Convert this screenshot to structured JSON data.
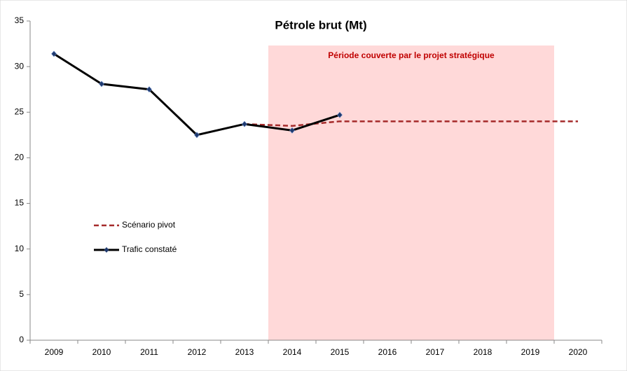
{
  "chart_data": {
    "type": "line",
    "title": "Pétrole brut (Mt)",
    "categories": [
      "2009",
      "2010",
      "2011",
      "2012",
      "2013",
      "2014",
      "2015",
      "2016",
      "2017",
      "2018",
      "2019",
      "2020"
    ],
    "series": [
      {
        "name": "Scénario pivot",
        "color": "#a52a2a",
        "dashed": true,
        "markers": false,
        "values": [
          null,
          null,
          null,
          null,
          23.7,
          23.5,
          24.0,
          24.0,
          24.0,
          24.0,
          24.0,
          24.0
        ]
      },
      {
        "name": "Trafic constaté",
        "color": "#000000",
        "dashed": false,
        "markers": true,
        "marker_color": "#1f3a6e",
        "values": [
          31.4,
          28.1,
          27.5,
          22.5,
          23.7,
          23.0,
          24.7,
          null,
          null,
          null,
          null,
          null
        ]
      }
    ],
    "annotation": {
      "text": "Période couverte par le projet stratégique",
      "color": "#c00000",
      "fill": "#ffd9d9",
      "from": 2014,
      "to": 2019
    },
    "ylim": [
      0,
      35
    ],
    "yticks": [
      0,
      5,
      10,
      15,
      20,
      25,
      30,
      35
    ],
    "grid": false,
    "legend": "left"
  }
}
